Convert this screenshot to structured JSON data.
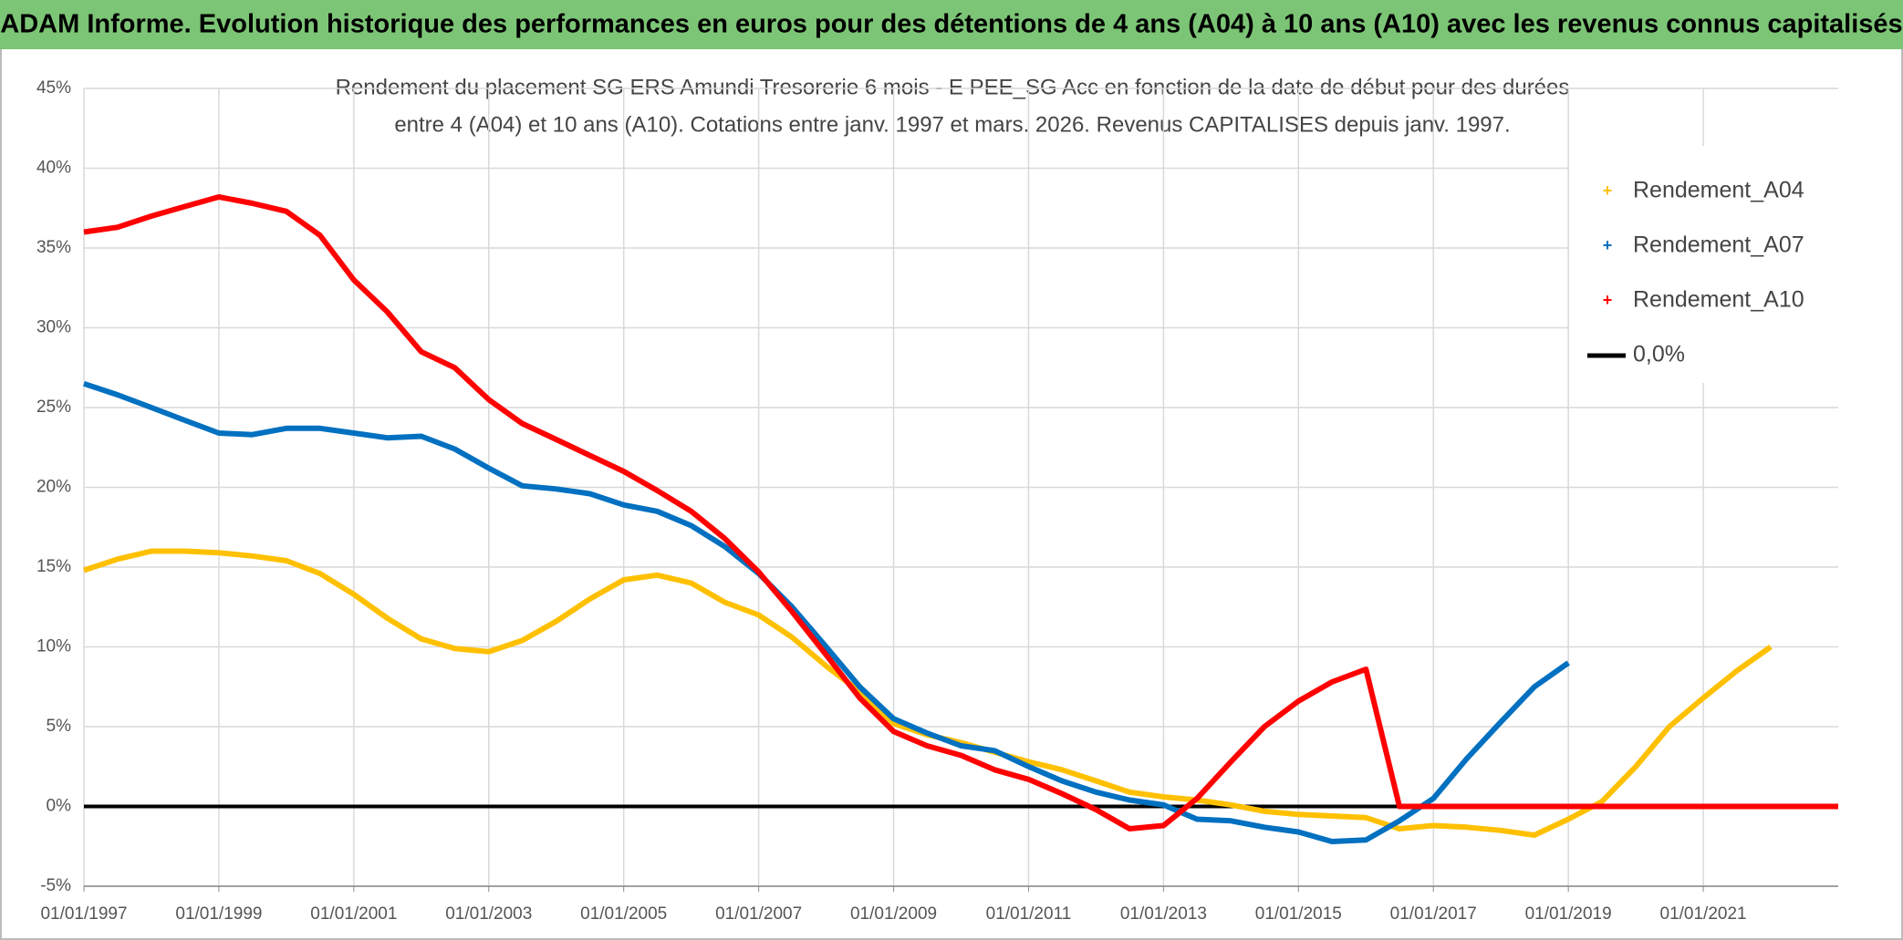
{
  "chart_data": {
    "type": "line",
    "title": "ADAM Informe. Evolution historique des performances en euros pour des détentions de 4 ans (A04) à 10 ans (A10) avec les revenus connus capitalisés",
    "subtitle": [
      "Rendement du placement SG ERS Amundi Tresorerie 6 mois - E PEE_SG Acc en fonction de la date de début pour des durées",
      "entre 4 (A04) et 10 ans (A10). Cotations entre janv. 1997 et mars. 2026. Revenus CAPITALISES depuis janv. 1997."
    ],
    "x": [
      "1997-01-01",
      "1997-07-01",
      "1998-01-01",
      "1998-07-01",
      "1999-01-01",
      "1999-07-01",
      "2000-01-01",
      "2000-07-01",
      "2001-01-01",
      "2001-07-01",
      "2002-01-01",
      "2002-07-01",
      "2003-01-01",
      "2003-07-01",
      "2004-01-01",
      "2004-07-01",
      "2005-01-01",
      "2005-07-01",
      "2006-01-01",
      "2006-07-01",
      "2007-01-01",
      "2007-07-01",
      "2008-01-01",
      "2008-07-01",
      "2009-01-01",
      "2009-07-01",
      "2010-01-01",
      "2010-07-01",
      "2011-01-01",
      "2011-07-01",
      "2012-01-01",
      "2012-07-01",
      "2013-01-01",
      "2013-07-01",
      "2014-01-01",
      "2014-07-01",
      "2015-01-01",
      "2015-07-01",
      "2016-01-01",
      "2016-07-01",
      "2017-01-01",
      "2017-07-01",
      "2018-01-01",
      "2018-07-01",
      "2019-01-01",
      "2019-07-01",
      "2020-01-01",
      "2020-07-01",
      "2021-01-01",
      "2021-07-01",
      "2022-01-01",
      "2022-07-01",
      "2023-01-01"
    ],
    "series": [
      {
        "name": "Rendement_A04",
        "color": "#ffc000",
        "values": [
          14.8,
          15.5,
          16.0,
          16.0,
          15.9,
          15.7,
          15.4,
          14.6,
          13.3,
          11.8,
          10.5,
          9.9,
          9.7,
          10.4,
          11.6,
          13.0,
          14.2,
          14.5,
          14.0,
          12.8,
          12.0,
          10.6,
          8.8,
          7.2,
          5.2,
          4.5,
          4.0,
          3.4,
          2.8,
          2.3,
          1.6,
          0.9,
          0.6,
          0.4,
          0.1,
          -0.3,
          -0.5,
          -0.6,
          -0.7,
          -1.4,
          -1.2,
          -1.3,
          -1.5,
          -1.8,
          -0.8,
          0.3,
          2.5,
          5.0,
          6.8,
          8.5,
          10.0,
          null,
          null
        ]
      },
      {
        "name": "Rendement_A07",
        "color": "#0070c0",
        "values": [
          26.5,
          25.8,
          25.0,
          24.2,
          23.4,
          23.3,
          23.7,
          23.7,
          23.4,
          23.1,
          23.2,
          22.4,
          21.2,
          20.1,
          19.9,
          19.6,
          18.9,
          18.5,
          17.6,
          16.3,
          14.6,
          12.5,
          10.0,
          7.5,
          5.5,
          4.6,
          3.8,
          3.5,
          2.5,
          1.6,
          0.9,
          0.4,
          0.1,
          -0.8,
          -0.9,
          -1.3,
          -1.6,
          -2.2,
          -2.1,
          -0.9,
          0.5,
          3.0,
          5.3,
          7.5,
          9.0,
          null,
          null,
          null,
          null,
          null,
          null,
          null,
          null
        ]
      },
      {
        "name": "Rendement_A10",
        "color": "#ff0000",
        "values": [
          36.0,
          36.3,
          37.0,
          37.6,
          38.2,
          37.8,
          37.3,
          35.8,
          33.0,
          31.0,
          28.5,
          27.5,
          25.5,
          24.0,
          23.0,
          22.0,
          21.0,
          19.8,
          18.5,
          16.8,
          14.7,
          12.2,
          9.5,
          6.8,
          4.7,
          3.8,
          3.2,
          2.3,
          1.7,
          0.8,
          -0.2,
          -1.4,
          -1.2,
          0.5,
          2.8,
          5.0,
          6.6,
          7.8,
          8.6,
          0,
          0,
          0,
          0,
          0,
          0,
          0,
          0,
          0,
          0,
          0,
          0,
          0,
          0
        ]
      },
      {
        "name": "0,0%",
        "color": "#000000",
        "values": [
          0,
          0,
          0,
          0,
          0,
          0,
          0,
          0,
          0,
          0,
          0,
          0,
          0,
          0,
          0,
          0,
          0,
          0,
          0,
          0,
          0,
          0,
          0,
          0,
          0,
          0,
          0,
          0,
          0,
          0,
          0,
          0,
          0,
          0,
          0,
          0,
          0,
          0,
          0,
          0,
          0,
          0,
          0,
          0,
          0,
          0,
          0,
          0,
          0,
          0,
          0,
          0,
          0
        ]
      }
    ],
    "xlim": [
      "1997-01-01",
      "2023-01-01"
    ],
    "xticks": [
      {
        "value": "1997-01-01",
        "label": "01/01/1997"
      },
      {
        "value": "1999-01-01",
        "label": "01/01/1999"
      },
      {
        "value": "2001-01-01",
        "label": "01/01/2001"
      },
      {
        "value": "2003-01-01",
        "label": "01/01/2003"
      },
      {
        "value": "2005-01-01",
        "label": "01/01/2005"
      },
      {
        "value": "2007-01-01",
        "label": "01/01/2007"
      },
      {
        "value": "2009-01-01",
        "label": "01/01/2009"
      },
      {
        "value": "2011-01-01",
        "label": "01/01/2011"
      },
      {
        "value": "2013-01-01",
        "label": "01/01/2013"
      },
      {
        "value": "2015-01-01",
        "label": "01/01/2015"
      },
      {
        "value": "2017-01-01",
        "label": "01/01/2017"
      },
      {
        "value": "2019-01-01",
        "label": "01/01/2019"
      },
      {
        "value": "2021-01-01",
        "label": "01/01/2021"
      }
    ],
    "ylim": [
      -5,
      45
    ],
    "yticks": [
      {
        "value": -5,
        "label": "-5%"
      },
      {
        "value": 0,
        "label": "0%"
      },
      {
        "value": 5,
        "label": "5%"
      },
      {
        "value": 10,
        "label": "10%"
      },
      {
        "value": 15,
        "label": "15%"
      },
      {
        "value": 20,
        "label": "20%"
      },
      {
        "value": 25,
        "label": "25%"
      },
      {
        "value": 30,
        "label": "30%"
      },
      {
        "value": 35,
        "label": "35%"
      },
      {
        "value": 40,
        "label": "40%"
      },
      {
        "value": 45,
        "label": "45%"
      }
    ],
    "grid": true,
    "legend": "top-right"
  }
}
